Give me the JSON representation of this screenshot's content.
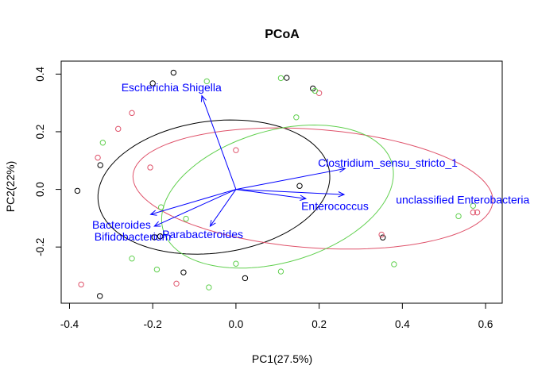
{
  "chart_data": {
    "type": "scatter",
    "title": "PCoA",
    "xlabel": "PC1(27.5%)",
    "ylabel": "PC2(22%)",
    "xlim": [
      -0.42,
      0.64
    ],
    "ylim": [
      -0.395,
      0.445
    ],
    "xticks": [
      -0.4,
      -0.2,
      0.0,
      0.2,
      0.4,
      0.6
    ],
    "xtick_labels": [
      "-0.4",
      "-0.2",
      "0.0",
      "0.2",
      "0.4",
      "0.6"
    ],
    "yticks": [
      -0.2,
      0.0,
      0.2,
      0.4
    ],
    "ytick_labels": [
      "-0.2",
      "0.0",
      "0.2",
      "0.4"
    ],
    "grid": false,
    "colors": {
      "group1": "#000000",
      "group2": "#df536b",
      "group3": "#61d04f",
      "arrows": "#0000ff"
    },
    "series": [
      {
        "color": "#000000",
        "points": [
          [
            -0.15,
            0.405
          ],
          [
            -0.2,
            0.368
          ],
          [
            0.122,
            0.387
          ],
          [
            0.185,
            0.35
          ],
          [
            -0.326,
            0.084
          ],
          [
            -0.381,
            -0.005
          ],
          [
            0.153,
            0.012
          ],
          [
            -0.182,
            -0.163
          ],
          [
            -0.196,
            -0.166
          ],
          [
            -0.126,
            -0.288
          ],
          [
            0.022,
            -0.308
          ],
          [
            0.353,
            -0.167
          ],
          [
            -0.327,
            -0.37
          ]
        ],
        "ellipse": {
          "center": [
            -0.053,
            0.008
          ],
          "rx": 0.285,
          "ry": 0.225,
          "angle": 20
        }
      },
      {
        "color": "#df536b",
        "points": [
          [
            0.2,
            0.334
          ],
          [
            -0.25,
            0.265
          ],
          [
            -0.283,
            0.21
          ],
          [
            0.0,
            0.136
          ],
          [
            -0.332,
            0.11
          ],
          [
            -0.206,
            0.076
          ],
          [
            0.35,
            -0.157
          ],
          [
            0.57,
            -0.08
          ],
          [
            0.58,
            -0.08
          ],
          [
            -0.143,
            -0.327
          ],
          [
            -0.372,
            -0.33
          ]
        ],
        "ellipse": {
          "center": [
            0.185,
            0.003
          ],
          "rx": 0.435,
          "ry": 0.205,
          "angle": -7
        }
      },
      {
        "color": "#61d04f",
        "points": [
          [
            -0.07,
            0.375
          ],
          [
            0.108,
            0.386
          ],
          [
            0.19,
            0.342
          ],
          [
            0.145,
            0.25
          ],
          [
            -0.32,
            0.162
          ],
          [
            -0.18,
            -0.062
          ],
          [
            -0.12,
            -0.102
          ],
          [
            0.535,
            -0.093
          ],
          [
            0.57,
            -0.057
          ],
          [
            -0.25,
            -0.24
          ],
          [
            -0.19,
            -0.278
          ],
          [
            0.0,
            -0.258
          ],
          [
            0.108,
            -0.285
          ],
          [
            0.38,
            -0.26
          ],
          [
            -0.065,
            -0.34
          ]
        ],
        "ellipse": {
          "center": [
            0.1,
            -0.025
          ],
          "rx": 0.305,
          "ry": 0.215,
          "angle": 35
        }
      }
    ],
    "arrows": [
      {
        "label": "Escherichia Shigella",
        "end": [
          -0.082,
          0.325
        ],
        "label_pos": [
          -0.155,
          0.354
        ]
      },
      {
        "label": "Clostridium_sensu_stricto_1",
        "end": [
          0.262,
          0.072
        ],
        "label_pos": [
          0.365,
          0.093
        ]
      },
      {
        "label": "unclassified Enterobacteria",
        "end": [
          0.26,
          -0.018
        ],
        "label_pos": [
          0.545,
          -0.035
        ]
      },
      {
        "label": "Enterococcus",
        "end": [
          0.168,
          -0.032
        ],
        "label_pos": [
          0.238,
          -0.057
        ]
      },
      {
        "label": "Bacteroides",
        "end": [
          -0.205,
          -0.087
        ],
        "label_pos": [
          -0.275,
          -0.123
        ]
      },
      {
        "label": "Bifidobacterium",
        "end": [
          -0.196,
          -0.128
        ],
        "label_pos": [
          -0.248,
          -0.163
        ]
      },
      {
        "label": "Parabacteroides",
        "end": [
          -0.062,
          -0.128
        ],
        "label_pos": [
          -0.08,
          -0.155
        ]
      }
    ]
  }
}
